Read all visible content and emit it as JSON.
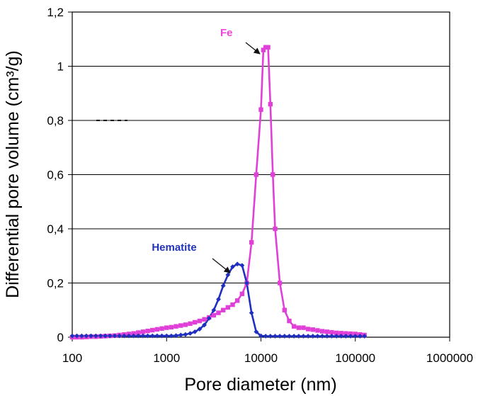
{
  "chart_data": {
    "type": "line",
    "title": "",
    "xlabel": "Pore diameter (nm)",
    "ylabel": "Differential pore volume (cm³/g)",
    "xscale": "log",
    "xlim": [
      100,
      1000000
    ],
    "ylim": [
      0,
      1.2
    ],
    "grid": "horizontal",
    "legend": "none",
    "x_tick_labels": [
      "100",
      "1000",
      "10000",
      "100000",
      "1000000"
    ],
    "y_tick_labels": [
      "0",
      "0,2",
      "0,4",
      "0,6",
      "0,8",
      "1",
      "1,2"
    ],
    "annotations": [
      {
        "text": "Fe",
        "color": "#ee44dd",
        "points_to_series": "Fe"
      },
      {
        "text": "Hematite",
        "color": "#2233bb",
        "points_to_series": "Hematite"
      }
    ],
    "series": [
      {
        "name": "Fe",
        "color": "#e040d8",
        "marker": "square",
        "x": [
          100,
          112,
          126,
          141,
          158,
          178,
          200,
          224,
          251,
          282,
          316,
          355,
          398,
          447,
          501,
          562,
          631,
          708,
          794,
          891,
          1000,
          1122,
          1259,
          1413,
          1585,
          1778,
          1995,
          2239,
          2512,
          2818,
          3162,
          3548,
          3981,
          4467,
          5012,
          5623,
          6310,
          7079,
          7943,
          8913,
          10000,
          10600,
          11220,
          11900,
          12590,
          13360,
          14130,
          15850,
          17780,
          19950,
          22390,
          25120,
          28180,
          31620,
          35480,
          39810,
          44670,
          50120,
          56230,
          63100,
          70790,
          79430,
          89130,
          100000,
          112200,
          125000
        ],
        "y": [
          0,
          0,
          0,
          0.001,
          0.002,
          0.002,
          0.003,
          0.004,
          0.005,
          0.006,
          0.008,
          0.01,
          0.012,
          0.014,
          0.017,
          0.02,
          0.023,
          0.026,
          0.029,
          0.032,
          0.035,
          0.037,
          0.04,
          0.043,
          0.046,
          0.05,
          0.055,
          0.06,
          0.066,
          0.073,
          0.081,
          0.09,
          0.1,
          0.11,
          0.12,
          0.135,
          0.16,
          0.2,
          0.35,
          0.6,
          0.84,
          1.06,
          1.07,
          1.07,
          0.86,
          0.6,
          0.4,
          0.2,
          0.1,
          0.06,
          0.04,
          0.035,
          0.035,
          0.03,
          0.028,
          0.025,
          0.022,
          0.02,
          0.018,
          0.016,
          0.015,
          0.014,
          0.013,
          0.012,
          0.01,
          0.008
        ]
      },
      {
        "name": "Hematite",
        "color": "#1f2fbf",
        "marker": "diamond",
        "x": [
          100,
          112,
          126,
          141,
          158,
          178,
          200,
          224,
          251,
          282,
          316,
          355,
          398,
          447,
          501,
          562,
          631,
          708,
          794,
          891,
          1000,
          1122,
          1259,
          1413,
          1585,
          1778,
          1995,
          2239,
          2512,
          2818,
          3162,
          3548,
          3981,
          4467,
          5012,
          5623,
          6310,
          7079,
          7943,
          8913,
          10000,
          11220,
          12590,
          14130,
          15850,
          17780,
          19950,
          22390,
          25120,
          28180,
          31620,
          35480,
          39810,
          44670,
          50120,
          56230,
          63100,
          70790,
          79430,
          89130,
          100000,
          112200,
          125000
        ],
        "y": [
          0.005,
          0.005,
          0.005,
          0.005,
          0.005,
          0.005,
          0.005,
          0.005,
          0.005,
          0.005,
          0.005,
          0.005,
          0.005,
          0.005,
          0.005,
          0.005,
          0.005,
          0.005,
          0.005,
          0.005,
          0.005,
          0.005,
          0.006,
          0.008,
          0.01,
          0.014,
          0.02,
          0.03,
          0.045,
          0.07,
          0.1,
          0.14,
          0.19,
          0.23,
          0.26,
          0.27,
          0.265,
          0.2,
          0.09,
          0.02,
          0.005,
          0.004,
          0.004,
          0.004,
          0.004,
          0.004,
          0.004,
          0.004,
          0.004,
          0.004,
          0.004,
          0.004,
          0.004,
          0.004,
          0.004,
          0.004,
          0.004,
          0.004,
          0.004,
          0.004,
          0.004,
          0.004,
          0.004
        ]
      }
    ]
  }
}
